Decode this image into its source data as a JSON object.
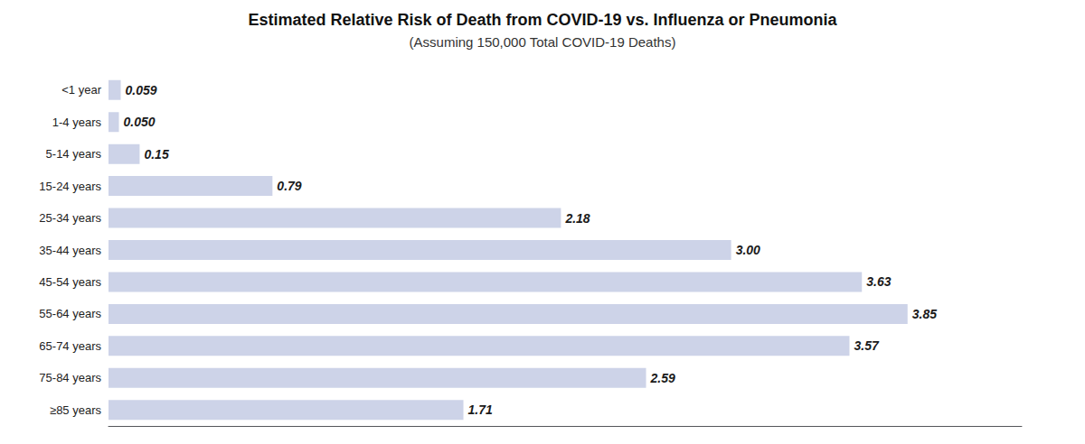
{
  "chart_data": {
    "type": "bar",
    "orientation": "horizontal",
    "title": "Estimated Relative Risk of Death from COVID-19 vs. Influenza or Pneumonia",
    "subtitle": "(Assuming 150,000 Total COVID-19 Deaths)",
    "categories": [
      "<1 year",
      "1-4 years",
      "5-14 years",
      "15-24 years",
      "25-34 years",
      "35-44 years",
      "45-54 years",
      "55-64 years",
      "65-74 years",
      "75-84 years",
      "≥85 years"
    ],
    "values": [
      0.059,
      0.05,
      0.15,
      0.79,
      2.18,
      3.0,
      3.63,
      3.85,
      3.57,
      2.59,
      1.71
    ],
    "value_labels": [
      "0.059",
      "0.050",
      "0.15",
      "0.79",
      "2.18",
      "3.00",
      "3.63",
      "3.85",
      "3.57",
      "2.59",
      "1.71"
    ],
    "color": "#cdd3e8",
    "xlim": [
      0,
      4.4
    ],
    "grid": false,
    "data_labels": true,
    "tick_labels": "y"
  }
}
